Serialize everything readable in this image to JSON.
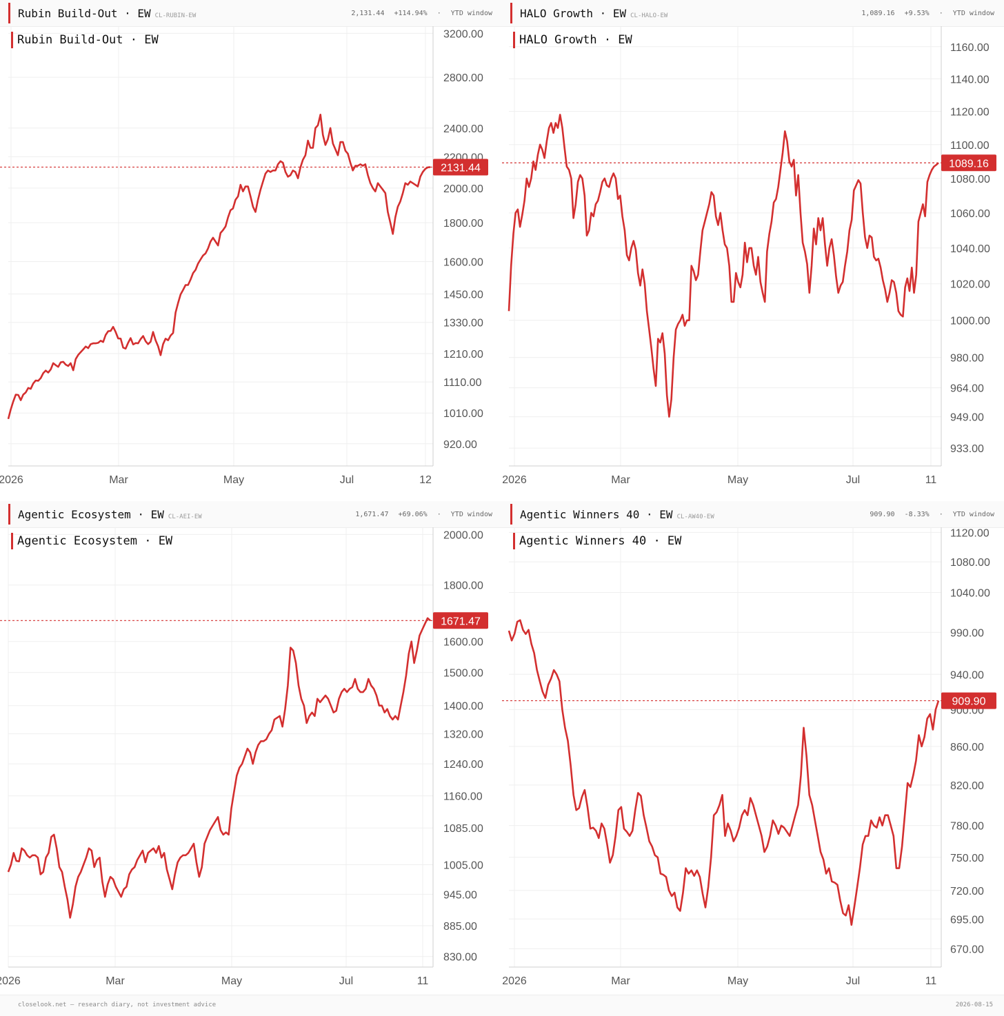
{
  "colors": {
    "line": "#d32f2f",
    "grid": "#efefef",
    "axis": "#cfcfcf",
    "tick": "#555555"
  },
  "panels": [
    {
      "header_title": "Rubin Build-Out · EW",
      "header_code": "CL-RUBIN-EW",
      "header_value": "2,131.44",
      "header_change": "+114.94%",
      "header_sep": "·",
      "header_window": "YTD window",
      "chart_data": {
        "type": "line",
        "title": "Rubin Build-Out · EW",
        "y_scale": "log",
        "ylim": [
          860,
          3270
        ],
        "y_ticks": [
          "3200.00",
          "2800.00",
          "2400.00",
          "2200.00",
          "2000.00",
          "1800.00",
          "1600.00",
          "1450.00",
          "1330.00",
          "1210.00",
          "1110.00",
          "1010.00",
          "920.00"
        ],
        "x_ticks": [
          "2026",
          "Mar",
          "May",
          "Jul",
          "12"
        ],
        "last_value": 2131.44,
        "last_label": "2131.44",
        "values": [
          992,
          1021,
          1046,
          1068,
          1067,
          1050,
          1068,
          1075,
          1090,
          1087,
          1105,
          1115,
          1114,
          1123,
          1140,
          1149,
          1142,
          1153,
          1175,
          1168,
          1162,
          1178,
          1180,
          1170,
          1165,
          1175,
          1150,
          1190,
          1205,
          1215,
          1225,
          1236,
          1230,
          1245,
          1248,
          1248,
          1250,
          1258,
          1253,
          1280,
          1295,
          1296,
          1312,
          1292,
          1267,
          1266,
          1232,
          1228,
          1250,
          1268,
          1244,
          1249,
          1248,
          1264,
          1276,
          1256,
          1245,
          1254,
          1292,
          1259,
          1237,
          1204,
          1245,
          1266,
          1260,
          1278,
          1288,
          1370,
          1410,
          1448,
          1468,
          1490,
          1490,
          1515,
          1545,
          1560,
          1590,
          1610,
          1630,
          1640,
          1665,
          1700,
          1720,
          1700,
          1680,
          1745,
          1760,
          1780,
          1830,
          1870,
          1880,
          1930,
          1950,
          2020,
          1980,
          2010,
          2010,
          1950,
          1890,
          1860,
          1930,
          1990,
          2040,
          2090,
          2110,
          2100,
          2110,
          2110,
          2150,
          2170,
          2160,
          2100,
          2070,
          2080,
          2110,
          2100,
          2060,
          2130,
          2180,
          2210,
          2310,
          2260,
          2260,
          2400,
          2420,
          2500,
          2350,
          2280,
          2320,
          2400,
          2290,
          2250,
          2210,
          2300,
          2300,
          2240,
          2220,
          2160,
          2110,
          2140,
          2140,
          2150,
          2140,
          2150,
          2080,
          2030,
          2000,
          1980,
          2030,
          2010,
          1990,
          1970,
          1860,
          1800,
          1740,
          1830,
          1890,
          1920,
          1970,
          2030,
          2020,
          2040,
          2030,
          2020,
          2010,
          2070,
          2100,
          2120,
          2130,
          2131.44
        ]
      }
    },
    {
      "header_title": "HALO Growth · EW",
      "header_code": "CL-HALO-EW",
      "header_value": "1,089.16",
      "header_change": "+9.53%",
      "header_sep": "·",
      "header_window": "YTD window",
      "chart_data": {
        "type": "line",
        "title": "HALO Growth · EW",
        "y_scale": "log",
        "ylim": [
          924,
          1173
        ],
        "y_ticks": [
          "1160.00",
          "1140.00",
          "1120.00",
          "1100.00",
          "1080.00",
          "1060.00",
          "1040.00",
          "1020.00",
          "1000.00",
          "980.00",
          "964.00",
          "949.00",
          "933.00"
        ],
        "x_ticks": [
          "2026",
          "Mar",
          "May",
          "Jul",
          "11"
        ],
        "last_value": 1089.16,
        "last_label": "1089.16",
        "values": [
          1005,
          1030,
          1048,
          1060,
          1062,
          1052,
          1059,
          1067,
          1080,
          1075,
          1080,
          1090,
          1085,
          1094,
          1100,
          1097,
          1092,
          1102,
          1110,
          1113,
          1107,
          1113,
          1110,
          1118,
          1110,
          1098,
          1087,
          1085,
          1080,
          1057,
          1065,
          1078,
          1082,
          1080,
          1070,
          1047,
          1050,
          1060,
          1058,
          1065,
          1067,
          1072,
          1078,
          1080,
          1076,
          1075,
          1080,
          1083,
          1080,
          1068,
          1070,
          1058,
          1050,
          1036,
          1033,
          1040,
          1044,
          1039,
          1026,
          1019,
          1028,
          1020,
          1005,
          995,
          985,
          974,
          965,
          990,
          988,
          993,
          982,
          960,
          949,
          958,
          980,
          995,
          998,
          1000,
          1003,
          997,
          1000,
          1000,
          1030,
          1027,
          1022,
          1025,
          1038,
          1050,
          1055,
          1060,
          1065,
          1072,
          1070,
          1058,
          1053,
          1060,
          1050,
          1042,
          1040,
          1030,
          1010,
          1010,
          1026,
          1021,
          1018,
          1025,
          1043,
          1032,
          1040,
          1040,
          1030,
          1025,
          1035,
          1021,
          1015,
          1010,
          1038,
          1048,
          1055,
          1066,
          1068,
          1075,
          1085,
          1095,
          1108,
          1102,
          1090,
          1087,
          1091,
          1070,
          1082,
          1060,
          1043,
          1038,
          1031,
          1015,
          1030,
          1051,
          1042,
          1057,
          1050,
          1057,
          1042,
          1030,
          1040,
          1045,
          1036,
          1024,
          1015,
          1019,
          1021,
          1030,
          1038,
          1050,
          1056,
          1073,
          1076,
          1079,
          1077,
          1060,
          1046,
          1040,
          1047,
          1046,
          1035,
          1033,
          1034,
          1029,
          1022,
          1017,
          1010,
          1015,
          1022,
          1021,
          1015,
          1005,
          1003,
          1002,
          1018,
          1023,
          1016,
          1029,
          1015,
          1025,
          1055,
          1060,
          1065,
          1058,
          1078,
          1082,
          1085,
          1087,
          1088,
          1089.16
        ]
      }
    },
    {
      "header_title": "Agentic Ecosystem · EW",
      "header_code": "CL-AEI-EW",
      "header_value": "1,671.47",
      "header_change": "+69.06%",
      "header_sep": "·",
      "header_window": "YTD window",
      "chart_data": {
        "type": "line",
        "title": "Agentic Ecosystem · EW",
        "y_scale": "log",
        "ylim": [
          812,
          2030
        ],
        "y_ticks": [
          "2000.00",
          "1800.00",
          "1600.00",
          "1500.00",
          "1400.00",
          "1320.00",
          "1240.00",
          "1160.00",
          "1085.00",
          "1005.00",
          "945.00",
          "885.00",
          "830.00"
        ],
        "x_ticks": [
          "2026",
          "Mar",
          "May",
          "Jul",
          "11"
        ],
        "last_value": 1671.47,
        "last_label": "1671.47",
        "values": [
          990,
          1005,
          1030,
          1013,
          1012,
          1040,
          1035,
          1025,
          1020,
          1025,
          1025,
          1020,
          985,
          990,
          1020,
          1030,
          1065,
          1070,
          1040,
          1000,
          990,
          960,
          935,
          900,
          925,
          960,
          980,
          990,
          1005,
          1020,
          1040,
          1035,
          1000,
          1015,
          1020,
          970,
          940,
          965,
          980,
          975,
          960,
          950,
          940,
          955,
          960,
          985,
          995,
          1000,
          1015,
          1025,
          1035,
          1010,
          1030,
          1035,
          1040,
          1030,
          1045,
          1020,
          1030,
          995,
          975,
          955,
          985,
          1010,
          1020,
          1025,
          1025,
          1030,
          1040,
          1050,
          1010,
          980,
          1000,
          1050,
          1065,
          1080,
          1090,
          1100,
          1110,
          1080,
          1070,
          1075,
          1070,
          1130,
          1170,
          1210,
          1230,
          1240,
          1260,
          1280,
          1270,
          1240,
          1270,
          1290,
          1300,
          1300,
          1305,
          1320,
          1330,
          1360,
          1365,
          1370,
          1340,
          1390,
          1460,
          1580,
          1570,
          1530,
          1460,
          1420,
          1400,
          1350,
          1370,
          1380,
          1370,
          1420,
          1410,
          1420,
          1430,
          1420,
          1400,
          1380,
          1385,
          1420,
          1440,
          1450,
          1440,
          1450,
          1455,
          1480,
          1450,
          1440,
          1440,
          1450,
          1480,
          1460,
          1450,
          1430,
          1400,
          1400,
          1380,
          1390,
          1370,
          1360,
          1370,
          1360,
          1400,
          1440,
          1490,
          1560,
          1600,
          1530,
          1570,
          1620,
          1640,
          1660,
          1680,
          1671.47
        ]
      }
    },
    {
      "header_title": "Agentic Winners 40 · EW",
      "header_code": "CL-AW40-EW",
      "header_value": "909.90",
      "header_change": "-8.33%",
      "header_sep": "·",
      "header_window": "YTD window",
      "chart_data": {
        "type": "line",
        "title": "Agentic Winners 40 · EW",
        "y_scale": "log",
        "ylim": [
          655,
          1127
        ],
        "y_ticks": [
          "1120.00",
          "1080.00",
          "1040.00",
          "990.00",
          "940.00",
          "900.00",
          "860.00",
          "820.00",
          "780.00",
          "750.00",
          "720.00",
          "695.00",
          "670.00"
        ],
        "x_ticks": [
          "2026",
          "Mar",
          "May",
          "Jul",
          "11"
        ],
        "last_value": 909.9,
        "last_label": "909.90",
        "values": [
          992,
          980,
          988,
          1003,
          1005,
          993,
          988,
          993,
          976,
          965,
          945,
          932,
          920,
          913,
          928,
          935,
          945,
          940,
          932,
          900,
          880,
          866,
          840,
          810,
          795,
          797,
          808,
          815,
          798,
          777,
          778,
          775,
          768,
          782,
          777,
          762,
          745,
          752,
          770,
          795,
          798,
          777,
          774,
          770,
          775,
          795,
          812,
          809,
          790,
          778,
          765,
          760,
          752,
          750,
          735,
          734,
          732,
          720,
          715,
          718,
          705,
          702,
          718,
          740,
          735,
          738,
          733,
          738,
          732,
          717,
          705,
          723,
          750,
          790,
          793,
          800,
          810,
          770,
          782,
          775,
          765,
          770,
          778,
          790,
          795,
          790,
          807,
          800,
          790,
          780,
          770,
          755,
          760,
          770,
          785,
          780,
          772,
          780,
          778,
          774,
          770,
          780,
          790,
          800,
          830,
          880,
          850,
          810,
          800,
          785,
          770,
          755,
          748,
          735,
          740,
          728,
          727,
          725,
          711,
          700,
          698,
          707,
          690,
          705,
          722,
          740,
          762,
          770,
          770,
          785,
          780,
          778,
          788,
          780,
          790,
          790,
          780,
          770,
          740,
          740,
          760,
          790,
          822,
          818,
          830,
          845,
          872,
          860,
          870,
          890,
          895,
          878,
          900,
          909.9
        ]
      }
    }
  ],
  "footer": {
    "left": "closelook.net — research diary, not investment advice",
    "right": "2026-08-15"
  }
}
